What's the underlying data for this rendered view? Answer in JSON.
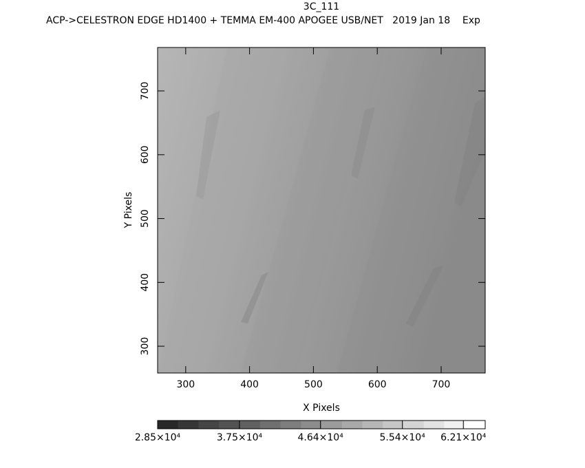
{
  "chart_data": {
    "type": "image",
    "title": "3C_111",
    "subtitle": "ACP->CELESTRON EDGE HD1400 + TEMMA EM-400 APOGEE USB/NET   2019 Jan 18    Exp",
    "x_label": "X Pixels",
    "y_label": "Y Pixels",
    "xlim": [
      256,
      769
    ],
    "ylim": [
      258,
      768
    ],
    "xticks": [
      300,
      400,
      500,
      600,
      700
    ],
    "yticks": [
      300,
      400,
      500,
      600,
      700
    ],
    "colorbar": {
      "lim": [
        28500,
        64500
      ],
      "ticks": [
        {
          "value": 28500,
          "label": "2.85×10⁴"
        },
        {
          "value": 37500,
          "label": "3.75×10⁴"
        },
        {
          "value": 46400,
          "label": "4.64×10⁴"
        },
        {
          "value": 55400,
          "label": "5.54×10⁴"
        },
        {
          "value": 62100,
          "label": "6.21×10⁴"
        }
      ]
    }
  }
}
